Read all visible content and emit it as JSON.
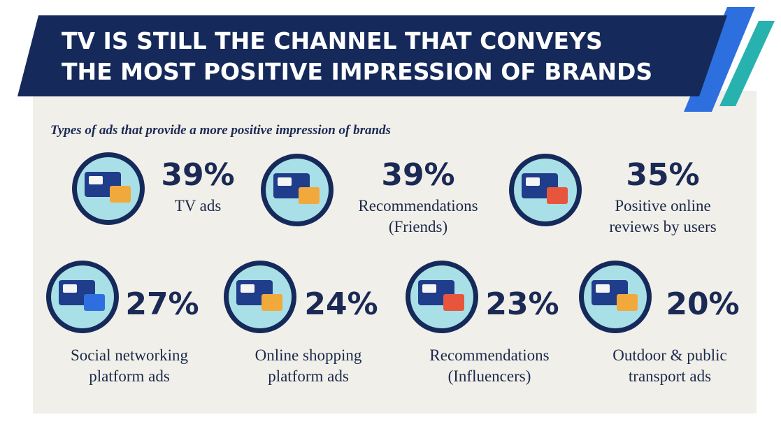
{
  "header": {
    "title_lines": [
      "TV IS STILL THE CHANNEL THAT CONVEYS",
      "THE MOST POSITIVE IMPRESSION OF BRANDS"
    ],
    "subtitle": "Types of ads that provide a more positive impression of brands"
  },
  "items": [
    {
      "value": "39%",
      "label_lines": [
        "TV ads"
      ]
    },
    {
      "value": "39%",
      "label_lines": [
        "Recommendations",
        "(Friends)"
      ]
    },
    {
      "value": "35%",
      "label_lines": [
        "Positive online",
        "reviews by users"
      ]
    },
    {
      "value": "27%",
      "label_lines": [
        "Social networking",
        "platform ads"
      ]
    },
    {
      "value": "24%",
      "label_lines": [
        "Online shopping",
        "platform ads"
      ]
    },
    {
      "value": "23%",
      "label_lines": [
        "Recommendations",
        "(Influencers)"
      ]
    },
    {
      "value": "20%",
      "label_lines": [
        "Outdoor & public",
        "transport ads"
      ]
    }
  ]
}
